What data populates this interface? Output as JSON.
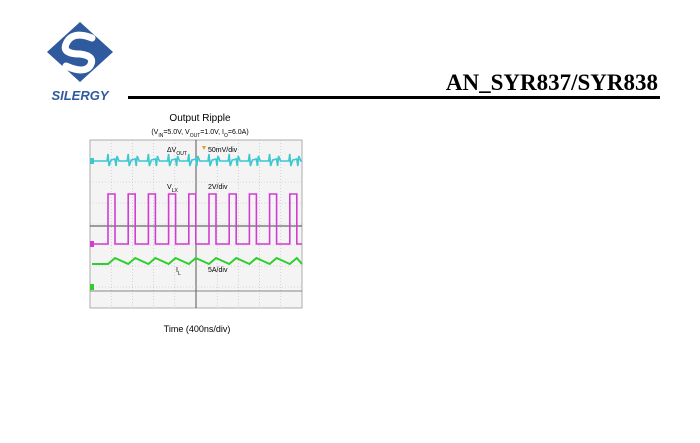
{
  "header": {
    "logo_text": "SILERGY",
    "doc_id": "AN_SYR837/SYR838"
  },
  "figure": {
    "title": "Output Ripple",
    "conditions": [
      "(V",
      "IN",
      "=5.0V, V",
      "OUT",
      "=1.0V, I",
      "O",
      "=6.0A)"
    ],
    "traces": [
      {
        "label": "ΔV",
        "label_sub": "OUT",
        "scale": "50mV/div"
      },
      {
        "label": "V",
        "label_sub": "LX",
        "scale": "2V/div"
      },
      {
        "label": "I",
        "label_sub": "L",
        "scale": "5A/div"
      }
    ],
    "caption": "Time (400ns/div)"
  }
}
